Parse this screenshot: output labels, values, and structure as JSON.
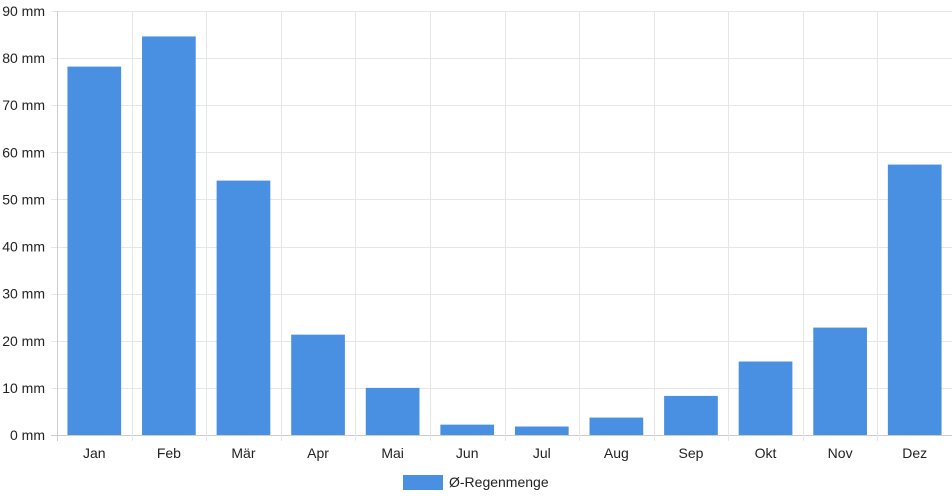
{
  "chart_data": {
    "type": "bar",
    "categories": [
      "Jan",
      "Feb",
      "Mär",
      "Apr",
      "Mai",
      "Jun",
      "Jul",
      "Aug",
      "Sep",
      "Okt",
      "Nov",
      "Dez"
    ],
    "series": [
      {
        "name": "Ø-Regenmenge",
        "values": [
          78.2,
          84.6,
          54.0,
          21.3,
          10.0,
          2.2,
          1.8,
          3.7,
          8.3,
          15.6,
          22.8,
          57.4
        ],
        "color": "#4a90e2"
      }
    ],
    "ylim": [
      0,
      90
    ],
    "yticks": [
      0,
      10,
      20,
      30,
      40,
      50,
      60,
      70,
      80,
      90
    ],
    "yunit": "mm",
    "grid": true,
    "legend_position": "bottom-center",
    "colors": {
      "bar": "#4a90e2",
      "grid": "#e6e6e6",
      "axis": "#cccccc",
      "text": "#222222"
    }
  }
}
